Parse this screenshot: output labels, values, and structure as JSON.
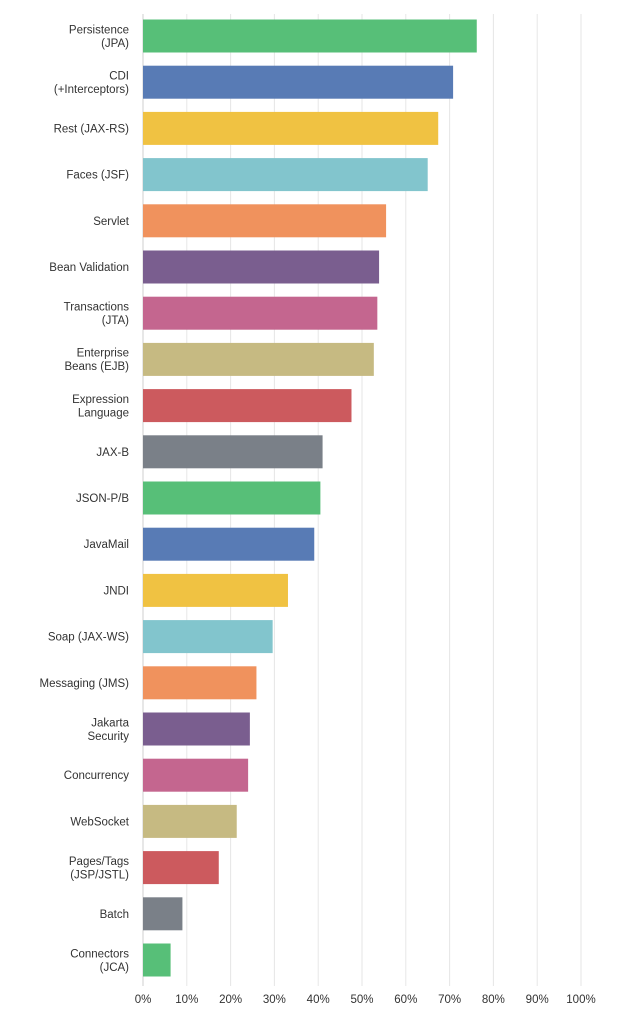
{
  "chart_data": {
    "type": "bar",
    "orientation": "horizontal",
    "categories": [
      [
        "Persistence",
        "(JPA)"
      ],
      [
        "CDI",
        "(+Interceptors)"
      ],
      [
        "Rest (JAX-RS)"
      ],
      [
        "Faces (JSF)"
      ],
      [
        "Servlet"
      ],
      [
        "Bean Validation"
      ],
      [
        "Transactions",
        "(JTA)"
      ],
      [
        "Enterprise",
        "Beans (EJB)"
      ],
      [
        "Expression",
        "Language"
      ],
      [
        "JAX-B"
      ],
      [
        "JSON-P/B"
      ],
      [
        "JavaMail"
      ],
      [
        "JNDI"
      ],
      [
        "Soap (JAX-WS)"
      ],
      [
        "Messaging (JMS)"
      ],
      [
        "Jakarta",
        "Security"
      ],
      [
        "Concurrency"
      ],
      [
        "WebSocket"
      ],
      [
        "Pages/Tags",
        "(JSP/JSTL)"
      ],
      [
        "Batch"
      ],
      [
        "Connectors",
        "(JCA)"
      ]
    ],
    "values": [
      76.2,
      70.8,
      67.4,
      65.0,
      55.5,
      53.9,
      53.5,
      52.7,
      47.6,
      41.0,
      40.5,
      39.1,
      33.1,
      29.6,
      25.9,
      24.4,
      24.0,
      21.4,
      17.3,
      9.0,
      6.3
    ],
    "colors": [
      "#57bf78",
      "#587bb5",
      "#f0c242",
      "#82c5cd",
      "#f0925d",
      "#7a5e8f",
      "#c4668f",
      "#c6ba82",
      "#cc5a5e",
      "#7a8088"
    ],
    "x_ticks": [
      "0%",
      "10%",
      "20%",
      "30%",
      "40%",
      "50%",
      "60%",
      "70%",
      "80%",
      "90%",
      "100%"
    ],
    "xlim": [
      0,
      100
    ],
    "grid": true
  }
}
